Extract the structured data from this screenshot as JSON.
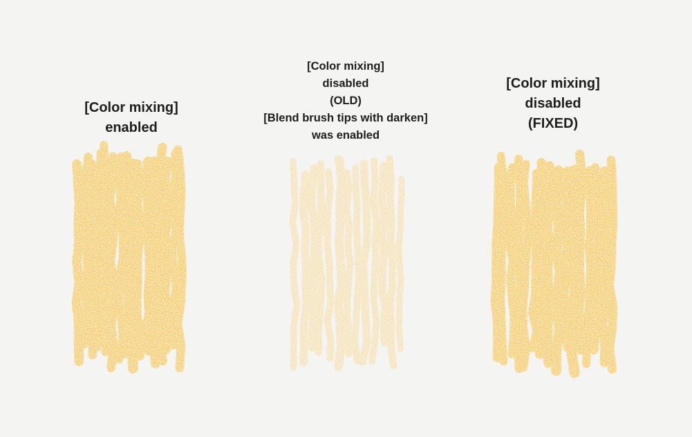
{
  "panels": [
    {
      "lines": [
        "[Color mixing]",
        "enabled"
      ],
      "stroke_color": "#ffb000",
      "stroke_opacity": 0.95
    },
    {
      "lines": [
        "[Color mixing]",
        "disabled",
        "(OLD)",
        "[Blend brush tips with darken]",
        "was enabled"
      ],
      "stroke_color": "#fbcf6a",
      "stroke_opacity": 0.75
    },
    {
      "lines": [
        "[Color mixing]",
        "disabled",
        "(FIXED)"
      ],
      "stroke_color": "#ffb000",
      "stroke_opacity": 0.95
    }
  ],
  "background": "#f4f4f3"
}
